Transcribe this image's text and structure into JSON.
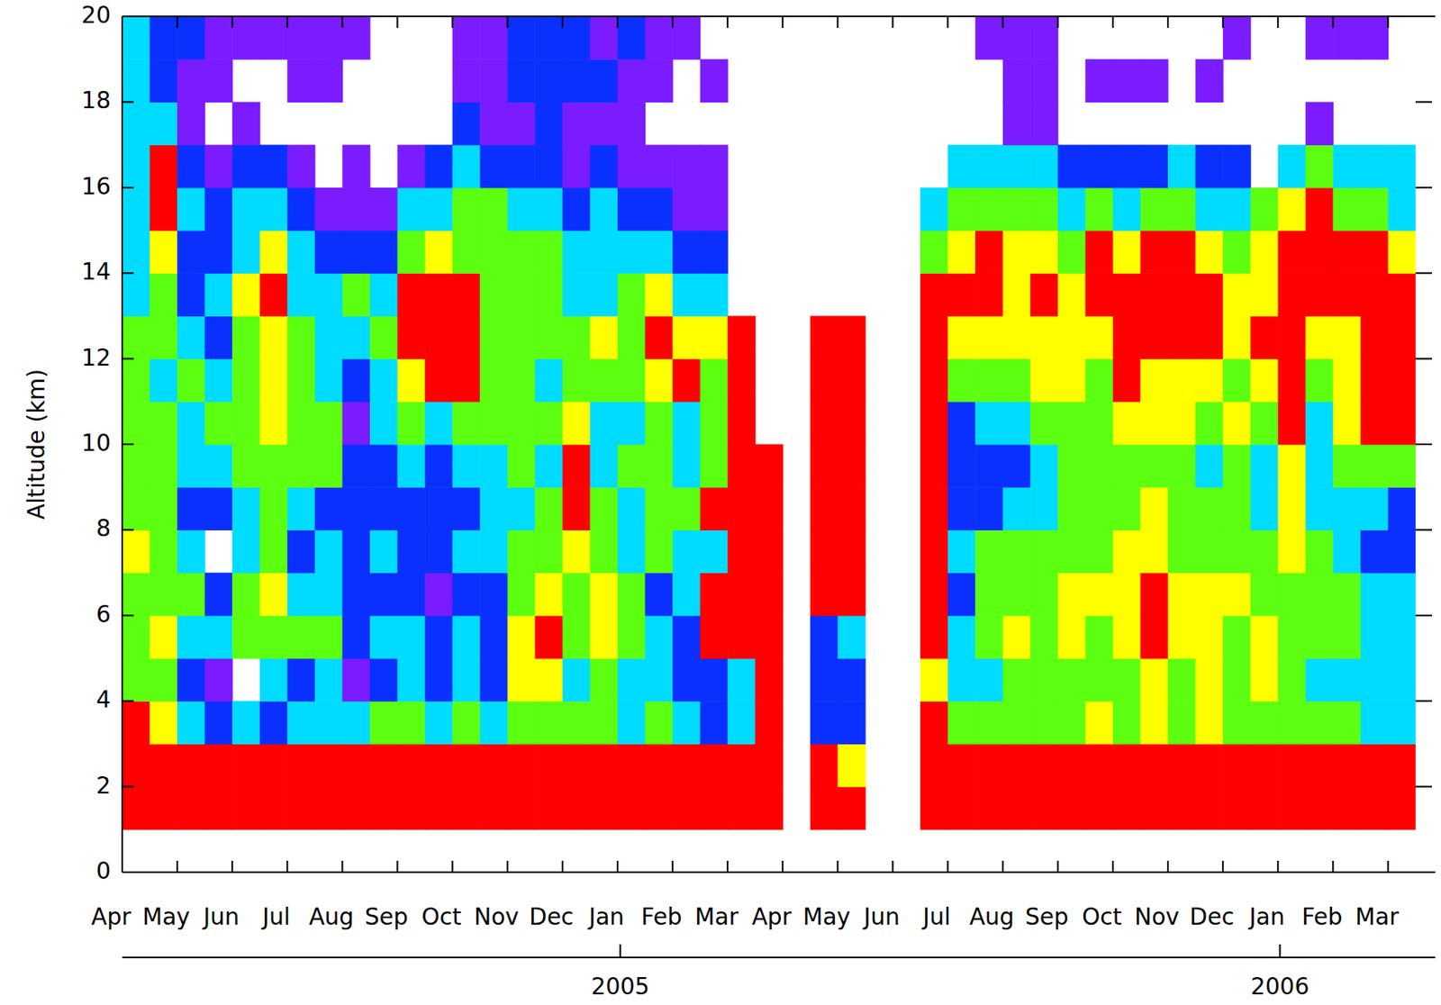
{
  "chart_data": {
    "type": "heatmap",
    "y_label": "Altitude (km)",
    "categories": [
      "Apr",
      null,
      "May",
      null,
      "Jun",
      null,
      "Jul",
      null,
      "Aug",
      null,
      "Sep",
      null,
      "Oct",
      null,
      "Nov",
      null,
      "Dec",
      null,
      "Jan",
      null,
      "Feb",
      null,
      "Mar",
      null,
      "Apr",
      null,
      "May",
      null,
      "Jun",
      null,
      "Jul",
      null,
      "Aug",
      null,
      "Sep",
      null,
      "Oct",
      null,
      "Nov",
      null,
      "Dec",
      null,
      "Jan",
      null,
      "Feb",
      null,
      "Mar"
    ],
    "year_ticks": [
      {
        "value": 18.1,
        "label": "2005"
      },
      {
        "value": 42.07,
        "label": "2006"
      }
    ],
    "ylim": [
      0,
      20
    ],
    "yticks": [
      0,
      2,
      4,
      6,
      8,
      10,
      12,
      14,
      16,
      18,
      20
    ],
    "ybins": [
      0,
      1,
      2,
      3,
      4,
      5,
      6,
      7,
      8,
      9,
      10,
      11,
      12,
      13,
      14,
      15,
      16,
      17,
      18,
      19,
      20
    ],
    "colors": [
      "#7a1cff",
      "#0a30ff",
      "#00dcff",
      "#5cff10",
      "#ffff00",
      "#ff0000"
    ],
    "cells": [
      [
        null,
        5,
        5,
        5,
        3,
        3,
        3,
        4,
        3,
        3,
        3,
        3,
        3,
        2,
        2,
        2,
        2,
        2,
        2,
        2
      ],
      [
        null,
        5,
        5,
        4,
        3,
        4,
        3,
        3,
        3,
        3,
        3,
        2,
        3,
        3,
        4,
        5,
        5,
        2,
        1,
        1
      ],
      [
        null,
        5,
        5,
        2,
        1,
        2,
        3,
        2,
        1,
        2,
        2,
        3,
        2,
        1,
        1,
        2,
        1,
        0,
        0,
        1
      ],
      [
        null,
        5,
        5,
        1,
        0,
        2,
        1,
        null,
        1,
        2,
        3,
        2,
        1,
        2,
        1,
        1,
        0,
        null,
        0,
        0
      ],
      [
        null,
        5,
        5,
        2,
        null,
        3,
        3,
        2,
        2,
        3,
        3,
        3,
        3,
        4,
        2,
        2,
        1,
        0,
        null,
        0
      ],
      [
        null,
        5,
        5,
        1,
        2,
        3,
        4,
        3,
        3,
        3,
        4,
        4,
        4,
        5,
        4,
        2,
        1,
        null,
        null,
        0
      ],
      [
        null,
        5,
        5,
        2,
        1,
        3,
        2,
        1,
        2,
        3,
        3,
        3,
        3,
        2,
        2,
        1,
        0,
        null,
        0,
        0
      ],
      [
        null,
        5,
        5,
        2,
        2,
        3,
        2,
        2,
        1,
        3,
        3,
        2,
        2,
        2,
        1,
        0,
        null,
        null,
        0,
        0
      ],
      [
        null,
        5,
        5,
        2,
        0,
        1,
        1,
        1,
        1,
        1,
        0,
        1,
        2,
        3,
        1,
        0,
        0,
        null,
        null,
        0
      ],
      [
        null,
        5,
        5,
        3,
        1,
        2,
        1,
        2,
        1,
        1,
        2,
        2,
        3,
        2,
        1,
        0,
        null,
        null,
        null,
        null
      ],
      [
        null,
        5,
        5,
        3,
        2,
        2,
        1,
        1,
        1,
        2,
        3,
        4,
        5,
        5,
        3,
        2,
        0,
        null,
        null,
        null
      ],
      [
        null,
        5,
        5,
        2,
        1,
        1,
        0,
        1,
        1,
        1,
        2,
        5,
        5,
        5,
        4,
        2,
        1,
        null,
        null,
        null
      ],
      [
        null,
        5,
        5,
        3,
        2,
        2,
        1,
        2,
        1,
        2,
        3,
        5,
        5,
        5,
        3,
        3,
        2,
        1,
        0,
        0
      ],
      [
        null,
        5,
        5,
        2,
        1,
        1,
        1,
        2,
        2,
        2,
        3,
        3,
        3,
        3,
        3,
        3,
        1,
        0,
        0,
        0
      ],
      [
        null,
        5,
        5,
        3,
        4,
        4,
        3,
        3,
        2,
        3,
        3,
        3,
        3,
        3,
        3,
        2,
        1,
        0,
        1,
        1
      ],
      [
        null,
        5,
        5,
        3,
        4,
        5,
        4,
        3,
        3,
        2,
        3,
        2,
        3,
        3,
        3,
        2,
        1,
        1,
        1,
        1
      ],
      [
        null,
        5,
        5,
        3,
        2,
        3,
        3,
        4,
        5,
        5,
        4,
        3,
        3,
        2,
        2,
        1,
        0,
        0,
        1,
        1
      ],
      [
        null,
        5,
        5,
        3,
        3,
        4,
        4,
        3,
        3,
        2,
        2,
        3,
        4,
        2,
        2,
        2,
        1,
        0,
        1,
        0
      ],
      [
        null,
        5,
        5,
        2,
        2,
        3,
        3,
        2,
        2,
        3,
        2,
        3,
        3,
        3,
        2,
        1,
        0,
        0,
        0,
        1
      ],
      [
        null,
        5,
        5,
        3,
        2,
        2,
        1,
        3,
        3,
        3,
        3,
        4,
        5,
        4,
        2,
        1,
        0,
        null,
        0,
        0
      ],
      [
        null,
        5,
        5,
        2,
        1,
        1,
        2,
        2,
        3,
        2,
        2,
        5,
        4,
        2,
        1,
        0,
        0,
        null,
        null,
        0
      ],
      [
        null,
        5,
        5,
        1,
        1,
        5,
        5,
        2,
        5,
        3,
        3,
        3,
        4,
        2,
        1,
        0,
        0,
        null,
        0,
        null
      ],
      [
        null,
        5,
        5,
        2,
        2,
        5,
        5,
        5,
        5,
        5,
        5,
        5,
        5,
        null,
        null,
        null,
        null,
        null,
        null,
        null
      ],
      [
        null,
        5,
        5,
        5,
        5,
        5,
        5,
        5,
        5,
        5,
        null,
        null,
        null,
        null,
        null,
        null,
        null,
        null,
        null,
        null
      ],
      [
        null,
        null,
        null,
        null,
        null,
        null,
        null,
        null,
        null,
        null,
        null,
        null,
        null,
        null,
        null,
        null,
        null,
        null,
        null,
        null
      ],
      [
        null,
        5,
        5,
        1,
        1,
        1,
        5,
        5,
        5,
        5,
        5,
        5,
        5,
        null,
        null,
        null,
        null,
        null,
        null,
        null
      ],
      [
        null,
        5,
        4,
        1,
        1,
        2,
        5,
        5,
        5,
        5,
        5,
        5,
        5,
        null,
        null,
        null,
        null,
        null,
        null,
        null
      ],
      [
        null,
        null,
        null,
        null,
        null,
        null,
        null,
        null,
        null,
        null,
        null,
        null,
        null,
        null,
        null,
        null,
        null,
        null,
        null,
        null
      ],
      [
        null,
        null,
        null,
        null,
        null,
        null,
        null,
        null,
        null,
        null,
        null,
        null,
        null,
        null,
        null,
        null,
        null,
        null,
        null,
        null
      ],
      [
        null,
        5,
        5,
        5,
        4,
        5,
        5,
        5,
        5,
        5,
        5,
        5,
        5,
        5,
        3,
        2,
        null,
        null,
        null,
        null
      ],
      [
        null,
        5,
        5,
        3,
        2,
        2,
        1,
        2,
        1,
        1,
        1,
        3,
        4,
        5,
        4,
        3,
        2,
        null,
        null,
        null
      ],
      [
        null,
        5,
        5,
        3,
        2,
        3,
        3,
        3,
        1,
        1,
        2,
        3,
        4,
        5,
        5,
        3,
        2,
        null,
        null,
        0
      ],
      [
        null,
        5,
        5,
        3,
        3,
        4,
        3,
        3,
        2,
        1,
        2,
        3,
        4,
        4,
        4,
        3,
        2,
        0,
        0,
        0
      ],
      [
        null,
        5,
        5,
        3,
        3,
        3,
        3,
        3,
        2,
        2,
        3,
        4,
        4,
        5,
        4,
        3,
        2,
        0,
        0,
        0
      ],
      [
        null,
        5,
        5,
        3,
        3,
        4,
        4,
        3,
        3,
        3,
        3,
        4,
        4,
        4,
        3,
        2,
        1,
        null,
        null,
        null
      ],
      [
        null,
        5,
        5,
        4,
        3,
        3,
        4,
        3,
        3,
        3,
        3,
        3,
        4,
        5,
        5,
        3,
        1,
        null,
        0,
        null
      ],
      [
        null,
        5,
        5,
        3,
        3,
        4,
        4,
        4,
        3,
        3,
        4,
        5,
        5,
        5,
        4,
        2,
        1,
        null,
        0,
        null
      ],
      [
        null,
        5,
        5,
        4,
        4,
        5,
        5,
        4,
        4,
        3,
        4,
        4,
        5,
        5,
        5,
        3,
        1,
        null,
        0,
        null
      ],
      [
        null,
        5,
        5,
        3,
        3,
        4,
        4,
        3,
        3,
        3,
        4,
        4,
        5,
        5,
        5,
        3,
        2,
        null,
        null,
        null
      ],
      [
        null,
        5,
        5,
        4,
        4,
        4,
        4,
        3,
        3,
        2,
        3,
        4,
        5,
        5,
        4,
        2,
        1,
        null,
        0,
        null
      ],
      [
        null,
        5,
        5,
        3,
        3,
        3,
        4,
        3,
        3,
        3,
        4,
        3,
        4,
        4,
        3,
        2,
        1,
        null,
        null,
        0
      ],
      [
        null,
        5,
        5,
        3,
        4,
        4,
        3,
        3,
        2,
        2,
        3,
        4,
        5,
        4,
        4,
        3,
        null,
        null,
        null,
        null
      ],
      [
        null,
        5,
        5,
        3,
        3,
        3,
        3,
        4,
        4,
        4,
        5,
        5,
        5,
        5,
        5,
        4,
        2,
        null,
        null,
        null
      ],
      [
        null,
        5,
        5,
        3,
        2,
        3,
        3,
        3,
        2,
        2,
        2,
        3,
        4,
        5,
        5,
        5,
        3,
        0,
        null,
        0
      ],
      [
        null,
        5,
        5,
        3,
        2,
        3,
        3,
        2,
        2,
        3,
        4,
        4,
        4,
        5,
        5,
        3,
        2,
        null,
        null,
        0
      ],
      [
        null,
        5,
        5,
        2,
        2,
        2,
        2,
        1,
        2,
        3,
        5,
        5,
        5,
        5,
        5,
        3,
        2,
        null,
        null,
        0
      ],
      [
        null,
        5,
        5,
        2,
        2,
        2,
        2,
        1,
        1,
        3,
        5,
        5,
        5,
        5,
        4,
        2,
        2,
        null,
        null,
        null
      ]
    ]
  }
}
